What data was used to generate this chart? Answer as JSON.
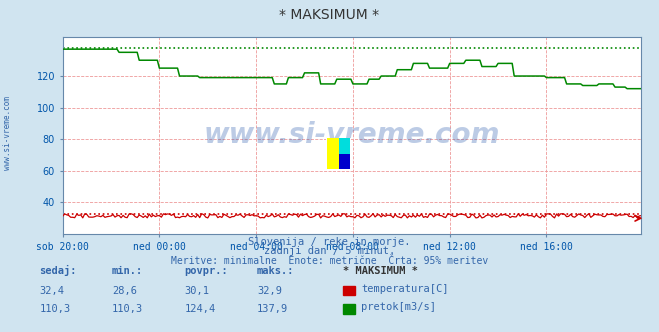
{
  "title": "* MAKSIMUM *",
  "bg_color": "#d0e4f0",
  "plot_bg_color": "#ffffff",
  "grid_color": "#ee9999",
  "ylabel_color": "#0055aa",
  "xlabel_color": "#0055aa",
  "x_ticks_labels": [
    "sob 20:00",
    "ned 00:00",
    "ned 04:00",
    "ned 08:00",
    "ned 12:00",
    "ned 16:00"
  ],
  "x_ticks_positions": [
    0,
    48,
    96,
    144,
    192,
    240
  ],
  "ylim": [
    20,
    145
  ],
  "yticks": [
    40,
    60,
    80,
    100,
    120
  ],
  "total_points": 288,
  "temp_color": "#cc0000",
  "flow_color": "#008800",
  "watermark": "www.si-vreme.com",
  "watermark_color": "#2255aa",
  "watermark_alpha": 0.3,
  "subtitle1": "Slovenija / reke in morje.",
  "subtitle2": "zadnji dan / 5 minut.",
  "subtitle3": "Meritve: minimalne  Enote: metrične  Črta: 95% meritev",
  "subtitle_color": "#3366aa",
  "legend_header": "* MAKSIMUM *",
  "legend_label1": "temperatura[C]",
  "legend_label2": "pretok[m3/s]",
  "legend_color1": "#cc0000",
  "legend_color2": "#008800",
  "table_headers": [
    "sedaj:",
    "min.:",
    "povpr.:",
    "maks.:"
  ],
  "table_row1": [
    "32,4",
    "28,6",
    "30,1",
    "32,9"
  ],
  "table_row2": [
    "110,3",
    "110,3",
    "124,4",
    "137,9"
  ],
  "table_color": "#3366aa",
  "left_label": "www.si-vreme.com",
  "left_label_color": "#3366aa",
  "temp_max": 32.9,
  "flow_max": 137.9,
  "spine_color": "#6688aa"
}
